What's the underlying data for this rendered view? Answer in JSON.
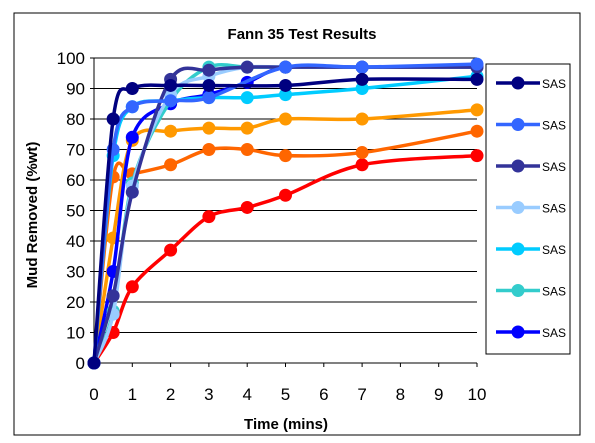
{
  "chart_data": {
    "type": "line",
    "title": "Fann 35 Test Results",
    "xlabel": "Time (mins)",
    "ylabel": "Mud Removed (%wt)",
    "xlim": [
      0,
      10
    ],
    "ylim": [
      0,
      100
    ],
    "xticks": [
      0,
      1,
      2,
      3,
      4,
      5,
      6,
      7,
      8,
      9,
      10
    ],
    "yticks": [
      0,
      10,
      20,
      30,
      40,
      50,
      60,
      70,
      80,
      90,
      100
    ],
    "grid": "horizontal",
    "smooth": true,
    "legend_position": "right",
    "series": [
      {
        "name": "SAS",
        "color": "#000080",
        "points": [
          [
            0,
            0
          ],
          [
            0.5,
            80
          ],
          [
            1,
            90
          ],
          [
            2,
            91
          ],
          [
            3,
            91
          ],
          [
            5,
            91
          ],
          [
            7,
            93
          ],
          [
            10,
            93
          ]
        ]
      },
      {
        "name": "SAS",
        "color": "#3366ff",
        "points": [
          [
            0,
            0
          ],
          [
            0.5,
            70
          ],
          [
            1,
            84
          ],
          [
            2,
            86
          ],
          [
            3,
            87
          ],
          [
            5,
            97
          ],
          [
            7,
            97
          ],
          [
            10,
            98
          ]
        ]
      },
      {
        "name": "SAS",
        "color": "#333399",
        "points": [
          [
            0,
            0
          ],
          [
            0.5,
            22
          ],
          [
            1,
            56
          ],
          [
            2,
            93
          ],
          [
            3,
            96
          ],
          [
            4,
            97
          ],
          [
            5,
            97
          ],
          [
            7,
            97
          ],
          [
            10,
            97
          ]
        ]
      },
      {
        "name": "SAS",
        "color": "#99ccff",
        "points": [
          [
            0,
            0
          ],
          [
            0.5,
            16
          ],
          [
            1,
            58
          ],
          [
            2,
            88
          ],
          [
            3,
            94
          ],
          [
            4,
            97
          ],
          [
            5,
            97
          ],
          [
            7,
            97
          ],
          [
            10,
            97
          ]
        ]
      },
      {
        "name": "SAS",
        "color": "#00ccff",
        "points": [
          [
            0,
            0
          ],
          [
            0.5,
            68
          ],
          [
            1,
            84
          ],
          [
            2,
            86
          ],
          [
            3,
            87
          ],
          [
            4,
            87
          ],
          [
            5,
            88
          ],
          [
            7,
            90
          ],
          [
            10,
            94
          ]
        ]
      },
      {
        "name": "SAS",
        "color": "#33cccc",
        "points": [
          [
            0,
            0
          ],
          [
            0.5,
            17
          ],
          [
            1,
            59
          ],
          [
            2,
            86
          ],
          [
            3,
            97
          ],
          [
            4,
            97
          ],
          [
            5,
            97
          ],
          [
            7,
            97
          ],
          [
            10,
            97
          ]
        ]
      },
      {
        "name": "SAS",
        "color": "#0000ff",
        "points": [
          [
            0,
            0
          ],
          [
            0.5,
            30
          ],
          [
            1,
            74
          ],
          [
            2,
            85
          ],
          [
            3,
            88
          ],
          [
            4,
            92
          ],
          [
            5,
            97
          ],
          [
            7,
            97
          ],
          [
            10,
            97
          ]
        ]
      },
      {
        "name": "",
        "color": "#ff9900",
        "points": [
          [
            0,
            0
          ],
          [
            0.5,
            41
          ],
          [
            1,
            73
          ],
          [
            2,
            76
          ],
          [
            3,
            77
          ],
          [
            4,
            77
          ],
          [
            5,
            80
          ],
          [
            7,
            80
          ],
          [
            10,
            83
          ]
        ]
      },
      {
        "name": "",
        "color": "#ff6600",
        "points": [
          [
            0,
            0
          ],
          [
            0.5,
            61
          ],
          [
            1,
            62
          ],
          [
            2,
            65
          ],
          [
            3,
            70
          ],
          [
            4,
            70
          ],
          [
            5,
            68
          ],
          [
            7,
            69
          ],
          [
            10,
            76
          ]
        ]
      },
      {
        "name": "",
        "color": "#ff0000",
        "points": [
          [
            0,
            0
          ],
          [
            0.5,
            10
          ],
          [
            1,
            25
          ],
          [
            2,
            37
          ],
          [
            3,
            48
          ],
          [
            4,
            51
          ],
          [
            5,
            55
          ],
          [
            7,
            65
          ],
          [
            10,
            68
          ]
        ]
      }
    ]
  }
}
